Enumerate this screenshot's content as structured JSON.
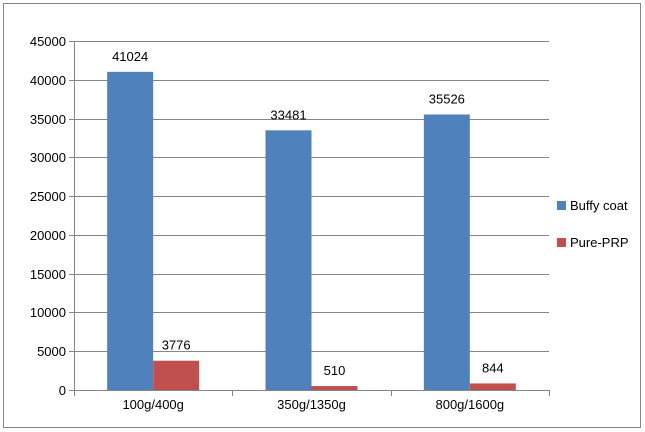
{
  "chart_data": {
    "type": "bar",
    "categories": [
      "100g/400g",
      "350g/1350g",
      "800g/1600g"
    ],
    "series": [
      {
        "name": "Buffy coat",
        "values": [
          41024,
          33481,
          35526
        ],
        "color": "#4F81BD"
      },
      {
        "name": "Pure-PRP",
        "values": [
          3776,
          510,
          844
        ],
        "color": "#C0504D"
      }
    ],
    "data_labels": [
      [
        "41024",
        "33481",
        "35526"
      ],
      [
        "3776",
        "510",
        "844"
      ]
    ],
    "ylim": [
      0,
      45000
    ],
    "yticks": [
      "0",
      "5000",
      "10000",
      "15000",
      "20000",
      "25000",
      "30000",
      "35000",
      "40000",
      "45000"
    ],
    "grid": true,
    "legend": "right"
  }
}
